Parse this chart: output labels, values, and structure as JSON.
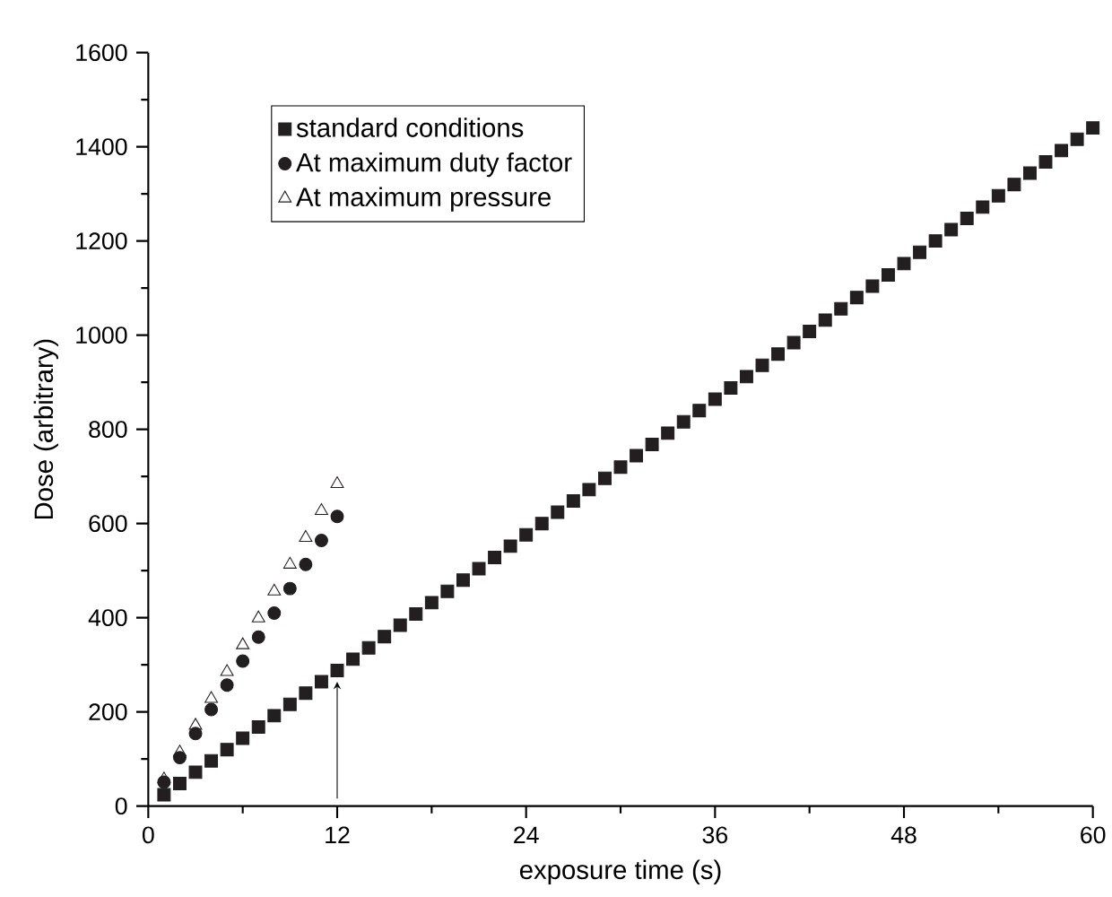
{
  "chart_data": {
    "type": "scatter",
    "xlabel": "exposure time (s)",
    "ylabel": "Dose (arbitrary)",
    "xlim": [
      0,
      60
    ],
    "xticks": [
      0,
      12,
      24,
      36,
      48,
      60
    ],
    "ylim": [
      0,
      1600
    ],
    "yticks": [
      0,
      200,
      400,
      600,
      800,
      1000,
      1200,
      1400,
      1600
    ],
    "grid": false,
    "legend": "top left",
    "series": [
      {
        "name": "standard conditions",
        "color": "#231f20",
        "marker": "square",
        "x": [
          1,
          2,
          3,
          4,
          5,
          6,
          7,
          8,
          9,
          10,
          11,
          12,
          13,
          14,
          15,
          16,
          17,
          18,
          19,
          20,
          21,
          22,
          23,
          24,
          25,
          26,
          27,
          28,
          29,
          30,
          31,
          32,
          33,
          34,
          35,
          36,
          37,
          38,
          39,
          40,
          41,
          42,
          43,
          44,
          45,
          46,
          47,
          48,
          49,
          50,
          51,
          52,
          53,
          54,
          55,
          56,
          57,
          58,
          59,
          60
        ],
        "values": [
          24,
          48,
          72,
          96,
          120,
          144,
          168,
          192,
          216,
          240,
          264,
          288,
          312,
          336,
          360,
          384,
          408,
          432,
          456,
          480,
          504,
          528,
          552,
          576,
          600,
          624,
          648,
          672,
          696,
          720,
          744,
          768,
          792,
          816,
          840,
          864,
          888,
          912,
          936,
          960,
          984,
          1008,
          1032,
          1056,
          1080,
          1104,
          1128,
          1152,
          1176,
          1200,
          1224,
          1248,
          1272,
          1296,
          1320,
          1344,
          1368,
          1392,
          1416,
          1440
        ]
      },
      {
        "name": "At maximum duty factor",
        "color": "#231f20",
        "marker": "circle",
        "x": [
          1,
          2,
          3,
          4,
          5,
          6,
          7,
          8,
          9,
          10,
          11,
          12
        ],
        "values": [
          51,
          103,
          154,
          205,
          257,
          308,
          359,
          410,
          462,
          513,
          564,
          615
        ]
      },
      {
        "name": "At maximum pressure",
        "color": "#231f20",
        "marker": "triangle",
        "x": [
          1,
          2,
          3,
          4,
          5,
          6,
          7,
          8,
          9,
          10,
          11,
          12
        ],
        "values": [
          57,
          114,
          171,
          228,
          285,
          342,
          399,
          456,
          513,
          570,
          627,
          684
        ]
      }
    ]
  }
}
